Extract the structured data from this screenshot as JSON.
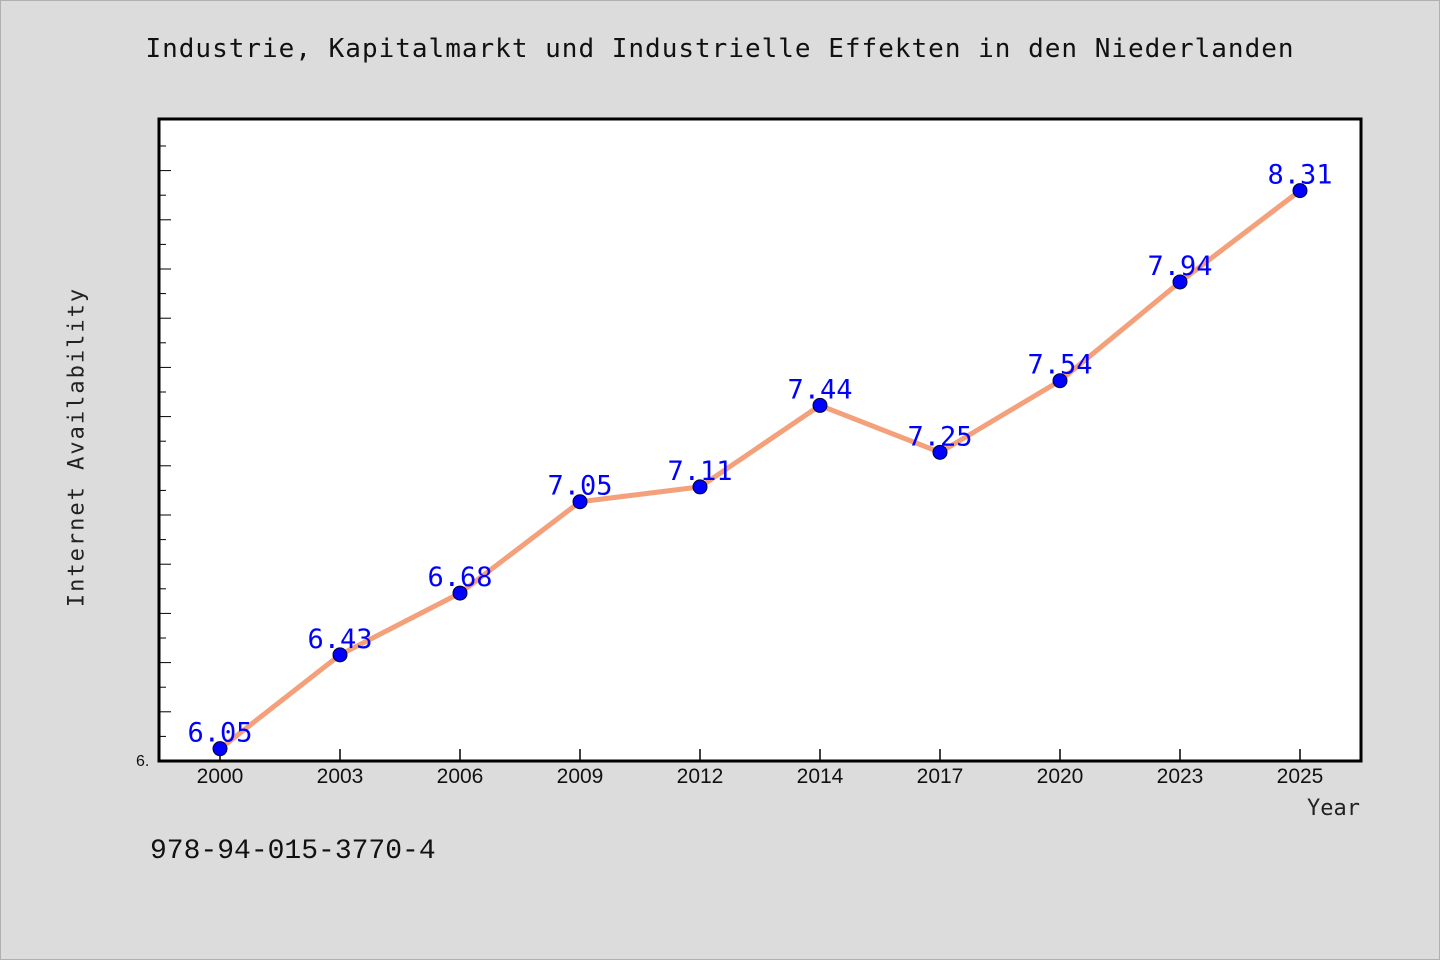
{
  "chart_data": {
    "type": "line",
    "title": "Industrie, Kapitalmarkt und Industrielle Effekten in den Niederlanden",
    "xlabel": "Year",
    "ylabel": "Internet Availability",
    "categories": [
      "2000",
      "2003",
      "2006",
      "2009",
      "2012",
      "2014",
      "2017",
      "2020",
      "2023",
      "2025"
    ],
    "series": [
      {
        "values": [
          6.05,
          6.43,
          6.68,
          7.05,
          7.11,
          7.44,
          7.25,
          7.54,
          7.94,
          8.31
        ],
        "line_color": "#f4a07a",
        "marker_color": "#0000ff"
      }
    ],
    "ylim": [
      6.0,
      8.6
    ],
    "y_tick_label": "6.",
    "data_labels": [
      "6.05",
      "6.43",
      "6.68",
      "7.05",
      "7.11",
      "7.44",
      "7.25",
      "7.54",
      "7.94",
      "8.31"
    ],
    "grid": false,
    "background_color": "#ffffff"
  },
  "footer": {
    "isbn": "978-94-015-3770-4"
  }
}
